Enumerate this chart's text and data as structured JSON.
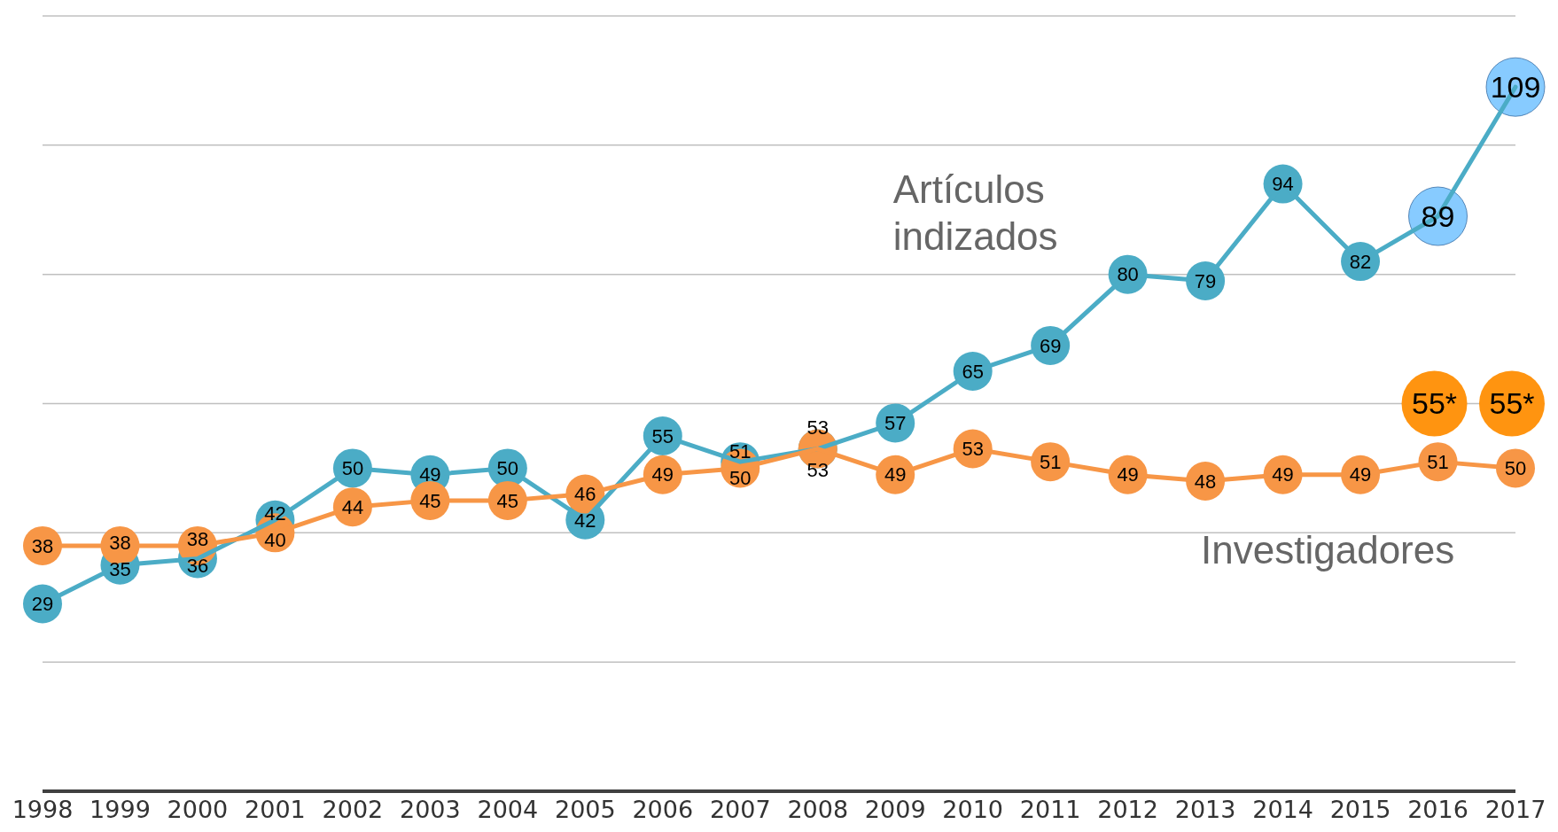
{
  "chart_data": {
    "type": "line",
    "categories": [
      "1998",
      "1999",
      "2000",
      "2001",
      "2002",
      "2003",
      "2004",
      "2005",
      "2006",
      "2007",
      "2008",
      "2009",
      "2010",
      "2011",
      "2012",
      "2013",
      "2014",
      "2015",
      "2016",
      "2017"
    ],
    "series": [
      {
        "name": "Investigadores",
        "color": "#f79646",
        "values": [
          38,
          38,
          38,
          40,
          44,
          45,
          45,
          46,
          49,
          50,
          53,
          49,
          53,
          51,
          49,
          48,
          49,
          49,
          51,
          50
        ]
      },
      {
        "name": "Artículos indizados",
        "color": "#4bacc6",
        "colors": [
          "#4bacc6",
          "#4bacc6",
          "#4bacc6",
          "#4bacc6",
          "#4bacc6",
          "#4bacc6",
          "#4bacc6",
          "#4bacc6",
          "#4bacc6",
          "#4bacc6",
          "#4bacc6",
          "#4bacc6",
          "#4bacc6",
          "#4bacc6",
          "#4bacc6",
          "#4bacc6",
          "#4bacc6",
          "#4bacc6",
          "#87cbff",
          "#87cbff"
        ],
        "values": [
          29,
          35,
          36,
          42,
          50,
          49,
          50,
          42,
          55,
          51,
          53,
          57,
          65,
          69,
          80,
          79,
          94,
          82,
          89,
          109
        ]
      }
    ],
    "annotations": [
      "55*",
      "55*"
    ],
    "ylim": [
      0,
      120
    ],
    "yticks": [
      {
        "value": 0,
        "label": null
      },
      {
        "value": 20,
        "label": null
      },
      {
        "value": 40,
        "label": null
      },
      {
        "value": 60,
        "label": null
      },
      {
        "value": 80,
        "label": null
      },
      {
        "value": 100,
        "label": null
      },
      {
        "value": 120,
        "label": null
      }
    ],
    "grid": "y",
    "marker": "circle",
    "data_labels": true,
    "tick_labels": "x"
  }
}
